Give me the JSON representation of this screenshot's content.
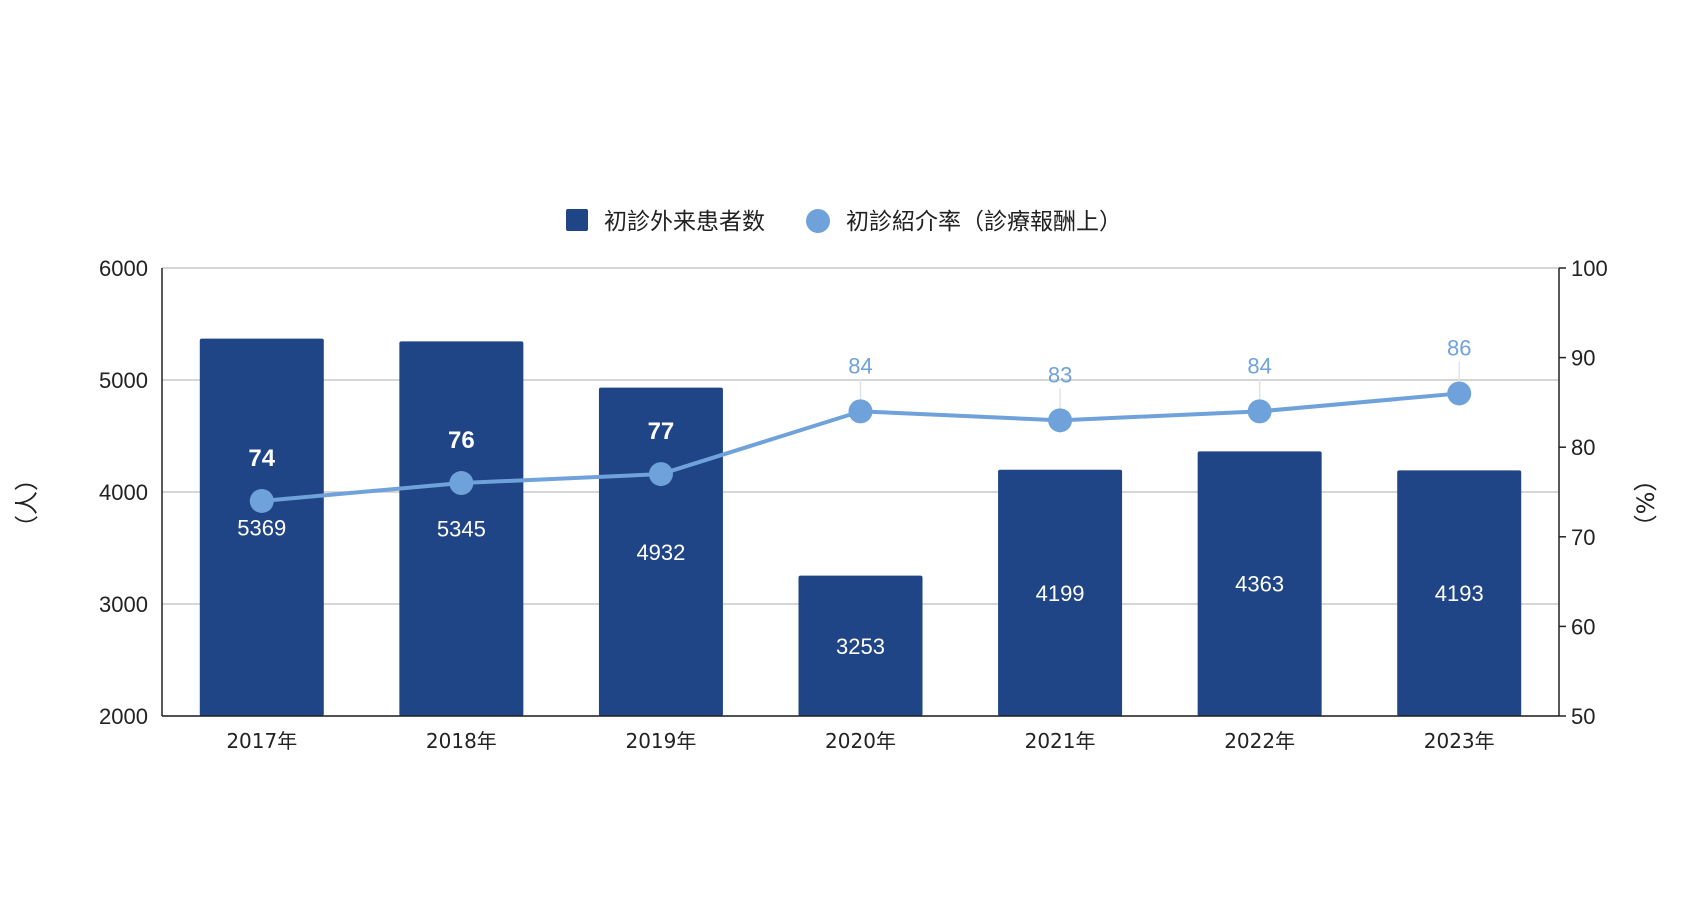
{
  "chart_data": {
    "type": "bar",
    "categories": [
      "2017年",
      "2018年",
      "2019年",
      "2020年",
      "2021年",
      "2022年",
      "2023年"
    ],
    "series": [
      {
        "name": "初診外来患者数",
        "type": "bar",
        "axis": "left",
        "color": "#1f4587",
        "values": [
          5369,
          5345,
          4932,
          3253,
          4199,
          4363,
          4193
        ]
      },
      {
        "name": "初診紹介率（診療報酬上）",
        "type": "line",
        "axis": "right",
        "color": "#6fa2da",
        "values": [
          74,
          76,
          77,
          84,
          83,
          84,
          86
        ]
      }
    ],
    "y_left": {
      "label": "（人）",
      "min": 2000,
      "max": 6000,
      "ticks": [
        "2000",
        "3000",
        "4000",
        "5000",
        "6000"
      ]
    },
    "y_right": {
      "label": "（%）",
      "min": 50,
      "max": 100,
      "ticks": [
        "50",
        "60",
        "70",
        "80",
        "90",
        "100"
      ]
    },
    "grid": true,
    "legend_position": "top"
  }
}
